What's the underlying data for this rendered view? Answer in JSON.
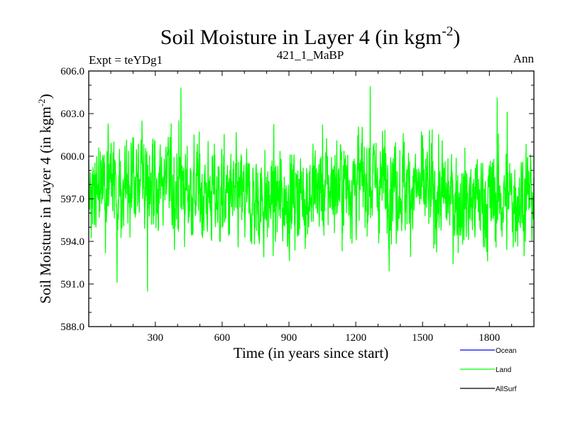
{
  "chart_data": {
    "type": "line",
    "title": "Soil Moisture in Layer 4 (in kgm",
    "title_superscript": "-2",
    "title_suffix": ")",
    "subtitle_left": "Expt = teYDg1",
    "subtitle_center": "421_1_MaBP",
    "subtitle_right": "Ann",
    "xlabel": "Time (in years since start)",
    "ylabel": "Soil Moisture in Layer 4 (in kgm",
    "ylabel_superscript": "-2",
    "ylabel_suffix": ")",
    "xlim": [
      1,
      2000
    ],
    "ylim": [
      588.0,
      606.0
    ],
    "x_ticks": [
      300,
      600,
      900,
      1200,
      1500,
      1800
    ],
    "x_tick_labels": [
      "300",
      "600",
      "900",
      "1200",
      "1500",
      "1800"
    ],
    "y_ticks": [
      588.0,
      591.0,
      594.0,
      597.0,
      600.0,
      603.0,
      606.0
    ],
    "y_tick_labels": [
      "588.0",
      "591.0",
      "594.0",
      "597.0",
      "600.0",
      "603.0",
      "606.0"
    ],
    "legend": [
      {
        "name": "Ocean",
        "color": "#0000ff"
      },
      {
        "name": "Land",
        "color": "#00ff00"
      },
      {
        "name": "AllSurf",
        "color": "#000000"
      }
    ],
    "series": [
      {
        "name": "Land",
        "color": "#00ff00",
        "generator": {
          "n_years": 2000,
          "mean": 597.5,
          "seed": 421
        },
        "annotated_extremes": [
          {
            "x": 265,
            "y": 590.5
          },
          {
            "x": 415,
            "y": 604.8
          },
          {
            "x": 1265,
            "y": 604.9
          },
          {
            "x": 1880,
            "y": 603.1
          },
          {
            "x": 1835,
            "y": 604.1
          }
        ]
      }
    ]
  }
}
